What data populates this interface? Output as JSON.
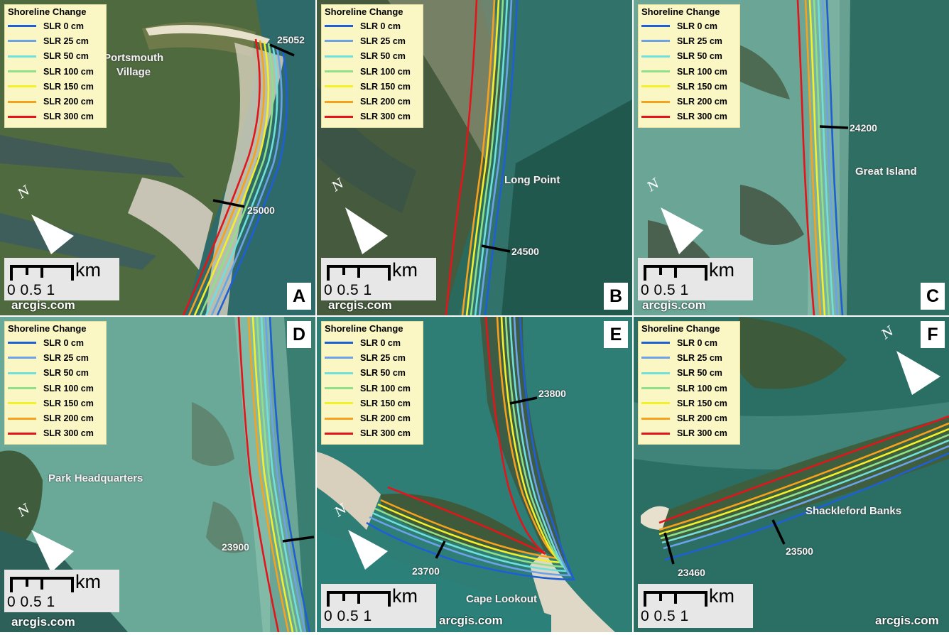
{
  "legend": {
    "title": "Shoreline Change",
    "items": [
      {
        "label": "SLR 0 cm",
        "color": "#1f5fd6"
      },
      {
        "label": "SLR 25 cm",
        "color": "#6ca3e8"
      },
      {
        "label": "SLR 50 cm",
        "color": "#6fe0dc"
      },
      {
        "label": "SLR 100 cm",
        "color": "#8fe08a"
      },
      {
        "label": "SLR 150 cm",
        "color": "#f3f02a"
      },
      {
        "label": "SLR 200 cm",
        "color": "#f7a21c"
      },
      {
        "label": "SLR 300 cm",
        "color": "#e3151a"
      }
    ]
  },
  "scalebar": {
    "unit": "km",
    "numbers": "0  0.5  1"
  },
  "credit": "arcgis.com",
  "north_symbol": "N",
  "panels": [
    {
      "letter": "A",
      "places": [
        "Portsmouth",
        "Village"
      ],
      "transects": [
        "25052",
        "25000"
      ]
    },
    {
      "letter": "B",
      "places": [
        "Long Point"
      ],
      "transects": [
        "24500"
      ]
    },
    {
      "letter": "C",
      "places": [
        "Great Island"
      ],
      "transects": [
        "24200"
      ]
    },
    {
      "letter": "D",
      "places": [
        "Park Headquarters"
      ],
      "transects": [
        "23900"
      ]
    },
    {
      "letter": "E",
      "places": [
        "Cape Lookout"
      ],
      "transects": [
        "23800",
        "23700"
      ]
    },
    {
      "letter": "F",
      "places": [
        "Shackleford Banks"
      ],
      "transects": [
        "23460",
        "23500"
      ]
    }
  ]
}
